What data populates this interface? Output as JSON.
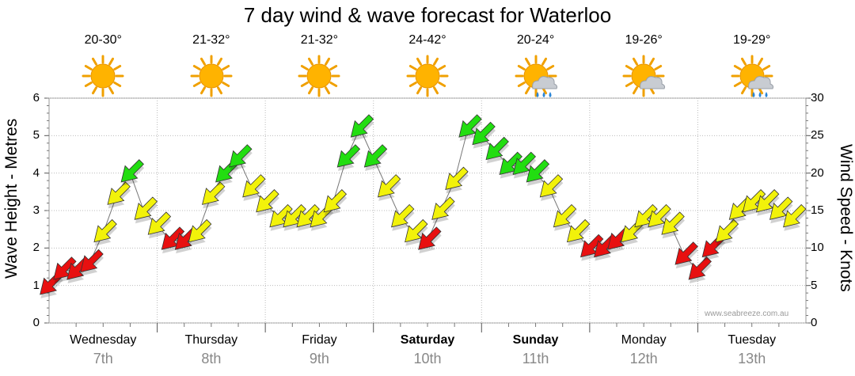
{
  "chart_data": {
    "type": "line",
    "title": "7 day wind & wave forecast for Waterloo",
    "ylabel_left": "Wave Height - Metres",
    "ylabel_right": "Wind Speed - Knots",
    "ylim_left": [
      0,
      6
    ],
    "ylim_right": [
      0,
      30
    ],
    "yticks_left": [
      "0",
      "1",
      "2",
      "3",
      "4",
      "5",
      "6"
    ],
    "yticks_right": [
      "0",
      "5",
      "10",
      "15",
      "20",
      "25",
      "30"
    ],
    "grid": true,
    "credit": "www.seabreeze.com.au",
    "days": [
      {
        "name": "Wednesday",
        "date": "7th",
        "bold": false,
        "temp": "20-30°",
        "weather": "sunny-icon"
      },
      {
        "name": "Thursday",
        "date": "8th",
        "bold": false,
        "temp": "21-32°",
        "weather": "sunny-icon"
      },
      {
        "name": "Friday",
        "date": "9th",
        "bold": false,
        "temp": "21-32°",
        "weather": "sunny-icon"
      },
      {
        "name": "Saturday",
        "date": "10th",
        "bold": true,
        "temp": "24-42°",
        "weather": "sunny-icon"
      },
      {
        "name": "Sunday",
        "date": "11th",
        "bold": true,
        "temp": "20-24°",
        "weather": "rain-sun-icon"
      },
      {
        "name": "Monday",
        "date": "12th",
        "bold": false,
        "temp": "19-26°",
        "weather": "cloud-sun-icon"
      },
      {
        "name": "Tuesday",
        "date": "13th",
        "bold": false,
        "temp": "19-29°",
        "weather": "rain-sun-icon"
      }
    ],
    "wind_colors": {
      "light": "#e81010",
      "moderate": "#f2f20a",
      "strong": "#22dd11"
    },
    "series": [
      {
        "name": "Wind Speed - Knots",
        "t": [
          0,
          3,
          6,
          9,
          12,
          15,
          18,
          21,
          24,
          27,
          30,
          33,
          36,
          39,
          42,
          45,
          48,
          51,
          54,
          57,
          60,
          63,
          66,
          69,
          72,
          75,
          78,
          81,
          84,
          87,
          90,
          93,
          96,
          99,
          102,
          105,
          108,
          111,
          114,
          117,
          120,
          123,
          126,
          129,
          132,
          135,
          138,
          141,
          144,
          147,
          150,
          153,
          156,
          159,
          162,
          165
        ],
        "values": [
          5,
          7,
          7,
          8,
          12,
          17,
          20,
          15,
          13,
          11,
          11,
          12,
          17,
          20,
          22,
          18,
          16,
          14,
          14,
          14,
          14,
          16,
          22,
          26,
          22,
          18,
          14,
          12,
          11,
          15,
          19,
          26,
          25,
          23,
          21,
          21,
          20,
          18,
          14,
          12,
          10,
          10,
          11,
          12,
          14,
          14,
          13,
          9,
          7,
          10,
          12,
          15,
          16,
          16,
          15,
          14
        ],
        "wind_dir_deg": [
          45,
          45,
          45,
          45,
          45,
          45,
          45,
          45,
          45,
          45,
          45,
          45,
          45,
          45,
          45,
          45,
          45,
          45,
          45,
          45,
          45,
          45,
          45,
          45,
          45,
          45,
          45,
          45,
          45,
          45,
          45,
          45,
          45,
          45,
          45,
          45,
          45,
          45,
          45,
          45,
          45,
          45,
          45,
          45,
          45,
          45,
          45,
          45,
          45,
          45,
          45,
          45,
          45,
          45,
          45,
          45
        ]
      }
    ]
  }
}
